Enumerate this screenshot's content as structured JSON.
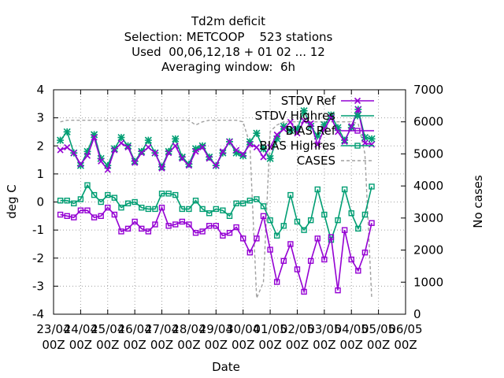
{
  "chart_data": {
    "type": "line",
    "title_lines": [
      "Td2m deficit",
      "Selection: METCOOP    523 stations",
      "Used  00,06,12,18 + 01 02 ... 12",
      "Averaging window:  6h"
    ],
    "xlabel": "Date",
    "ylabel": "deg C",
    "y2label": "No cases",
    "ylim": [
      -4,
      4
    ],
    "y2lim": [
      0,
      7000
    ],
    "yticks": [
      "4",
      "3",
      "2",
      "1",
      "0",
      "-1",
      "-2",
      "-3",
      "-4"
    ],
    "y2ticks": [
      "7000",
      "6000",
      "5000",
      "4000",
      "3000",
      "2000",
      "1000",
      "0"
    ],
    "xticks": [
      {
        "date": "23/04",
        "time": "00Z"
      },
      {
        "date": "24/04",
        "time": "00Z"
      },
      {
        "date": "25/04",
        "time": "00Z"
      },
      {
        "date": "26/04",
        "time": "00Z"
      },
      {
        "date": "27/04",
        "time": "00Z"
      },
      {
        "date": "28/04",
        "time": "00Z"
      },
      {
        "date": "29/04",
        "time": "00Z"
      },
      {
        "date": "30/04",
        "time": "00Z"
      },
      {
        "date": "01/05",
        "time": "00Z"
      },
      {
        "date": "02/05",
        "time": "00Z"
      },
      {
        "date": "03/05",
        "time": "00Z"
      },
      {
        "date": "04/05",
        "time": "00Z"
      },
      {
        "date": "05/05",
        "time": "00Z"
      },
      {
        "date": "06/05",
        "time": "00Z"
      }
    ],
    "grid": true,
    "legend_position": "top-right",
    "x_start": "2024-04-23 06Z",
    "x_step": "6h",
    "series": [
      {
        "name": "STDV Ref",
        "axis": "y",
        "color": "#9400d3",
        "marker": "cross",
        "values": [
          1.85,
          1.95,
          1.75,
          1.35,
          1.65,
          2.3,
          1.45,
          1.15,
          1.85,
          2.1,
          1.95,
          1.4,
          1.75,
          1.95,
          1.75,
          1.2,
          1.75,
          2.0,
          1.55,
          1.3,
          1.8,
          1.95,
          1.55,
          1.3,
          1.8,
          2.15,
          1.85,
          1.7,
          2.05,
          1.95,
          1.6,
          1.95,
          2.4,
          2.6,
          2.85,
          2.45,
          2.9,
          2.8,
          2.05,
          2.6,
          3.0,
          2.5,
          2.15,
          2.7,
          3.3,
          2.1,
          2.05
        ]
      },
      {
        "name": "STDV Highres",
        "axis": "y",
        "color": "#009e73",
        "marker": "star",
        "values": [
          2.2,
          2.5,
          1.75,
          1.3,
          1.8,
          2.4,
          1.55,
          1.3,
          1.9,
          2.3,
          2.0,
          1.45,
          1.8,
          2.2,
          1.75,
          1.25,
          1.8,
          2.25,
          1.6,
          1.35,
          1.9,
          2.0,
          1.6,
          1.3,
          1.75,
          2.15,
          1.75,
          1.65,
          2.15,
          2.45,
          1.9,
          1.55,
          2.25,
          2.7,
          2.55,
          2.6,
          3.25,
          2.7,
          2.35,
          2.75,
          3.1,
          2.65,
          2.2,
          2.65,
          3.3,
          2.3,
          2.25
        ]
      },
      {
        "name": "BIAS Ref",
        "axis": "y",
        "color": "#9400d3",
        "marker": "open-square",
        "values": [
          -0.45,
          -0.5,
          -0.55,
          -0.3,
          -0.3,
          -0.55,
          -0.5,
          -0.2,
          -0.45,
          -1.05,
          -0.95,
          -0.7,
          -0.95,
          -1.05,
          -0.8,
          -0.2,
          -0.85,
          -0.8,
          -0.7,
          -0.8,
          -1.1,
          -1.05,
          -0.85,
          -0.85,
          -1.2,
          -1.1,
          -0.9,
          -1.3,
          -1.8,
          -1.3,
          -0.5,
          -1.7,
          -2.85,
          -2.1,
          -1.5,
          -2.4,
          -3.2,
          -2.1,
          -1.3,
          -2.05,
          -1.25,
          -3.15,
          -1.0,
          -2.05,
          -2.45,
          -1.8,
          -0.75
        ]
      },
      {
        "name": "BIAS Highres",
        "axis": "y",
        "color": "#009e73",
        "marker": "open-square",
        "values": [
          0.05,
          0.05,
          -0.05,
          0.1,
          0.6,
          0.25,
          0.0,
          0.25,
          0.15,
          -0.2,
          -0.05,
          0.0,
          -0.2,
          -0.25,
          -0.25,
          0.3,
          0.3,
          0.25,
          -0.25,
          -0.25,
          0.05,
          -0.25,
          -0.4,
          -0.25,
          -0.3,
          -0.5,
          -0.05,
          -0.05,
          0.05,
          0.1,
          -0.15,
          -0.65,
          -1.2,
          -0.85,
          0.25,
          -0.7,
          -1.0,
          -0.65,
          0.45,
          -0.45,
          -1.35,
          -0.65,
          0.45,
          -0.4,
          -0.95,
          -0.45,
          0.55
        ]
      },
      {
        "name": "CASES",
        "axis": "y2",
        "color": "#a0a0a0",
        "style": "dashed",
        "values": [
          6000,
          6050,
          6050,
          6050,
          6050,
          6050,
          6050,
          6050,
          6050,
          6050,
          6050,
          6050,
          6050,
          6050,
          6050,
          6050,
          6050,
          6050,
          6050,
          6050,
          5900,
          6000,
          6050,
          6050,
          6050,
          6050,
          6050,
          6000,
          5300,
          500,
          1000,
          5700,
          5900,
          6000,
          6000,
          6000,
          6000,
          6000,
          6000,
          6000,
          6000,
          6000,
          6000,
          6000,
          5950,
          5000,
          500
        ]
      }
    ]
  }
}
